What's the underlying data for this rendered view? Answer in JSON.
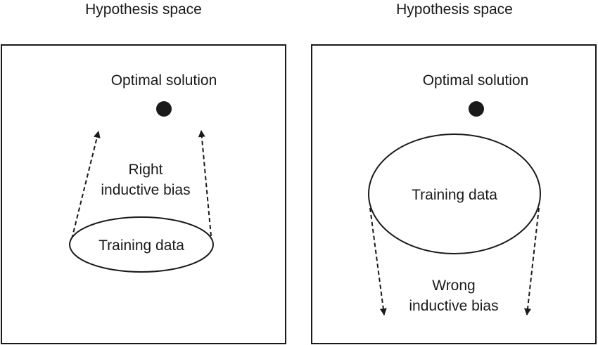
{
  "panels": [
    {
      "title": "Hypothesis space",
      "optimal_label": "Optimal solution",
      "training_label": "Training data",
      "bias_line1": "Right",
      "bias_line2": "inductive bias"
    },
    {
      "title": "Hypothesis space",
      "optimal_label": "Optimal solution",
      "training_label": "Training data",
      "bias_line1": "Wrong",
      "bias_line2": "inductive bias"
    }
  ],
  "colors": {
    "stroke": "#1a1a1a",
    "background": "#ffffff"
  }
}
